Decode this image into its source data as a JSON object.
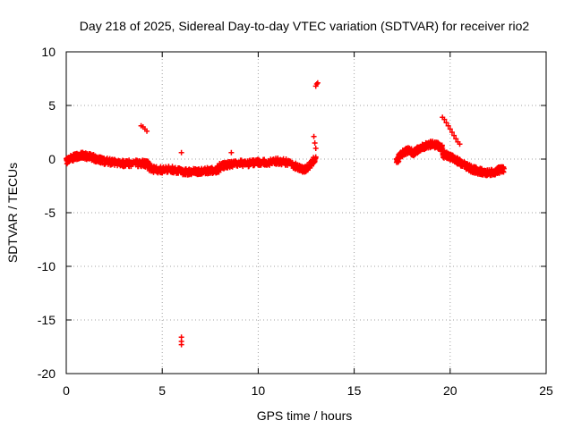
{
  "chart_data": {
    "type": "scatter",
    "title": "Day 218 of 2025, Sidereal Day-to-day VTEC variation (SDTVAR) for receiver rio2",
    "xlabel": "GPS time / hours",
    "ylabel": "SDTVAR / TECUs",
    "xlim": [
      0,
      25
    ],
    "ylim": [
      -20,
      10
    ],
    "xticks": [
      0,
      5,
      10,
      15,
      20,
      25
    ],
    "yticks": [
      -20,
      -15,
      -10,
      -5,
      0,
      5,
      10
    ],
    "xtick_labels": [
      "0",
      "5",
      "10",
      "15",
      "20",
      "25"
    ],
    "ytick_labels": [
      "-20",
      "-15",
      "-10",
      "-5",
      "0",
      "5",
      "10"
    ],
    "grid": true,
    "marker": "+",
    "color": "#ff0000",
    "series": [
      {
        "name": "SDTVAR",
        "segments": [
          {
            "x": [
              0.0,
              0.3,
              0.6,
              0.8,
              1.0,
              1.3,
              1.6,
              2.0,
              2.5,
              3.0,
              3.5,
              4.0,
              4.3
            ],
            "y": [
              -0.2,
              0.1,
              0.3,
              0.4,
              0.3,
              0.2,
              0.0,
              -0.2,
              -0.3,
              -0.4,
              -0.4,
              -0.4,
              -0.5
            ]
          },
          {
            "x": [
              4.3,
              4.6,
              5.0,
              5.4,
              5.8,
              6.2,
              6.6,
              7.0,
              7.4,
              7.8,
              8.0
            ],
            "y": [
              -0.8,
              -1.0,
              -1.0,
              -0.9,
              -1.1,
              -1.2,
              -1.2,
              -1.1,
              -1.1,
              -1.0,
              -0.9
            ]
          },
          {
            "x": [
              8.0,
              8.5,
              9.0,
              9.5,
              10.0,
              10.5,
              11.0,
              11.5,
              12.0,
              12.4,
              12.7,
              13.0
            ],
            "y": [
              -0.7,
              -0.5,
              -0.4,
              -0.4,
              -0.3,
              -0.3,
              -0.2,
              -0.3,
              -0.7,
              -1.0,
              -0.6,
              0.2
            ]
          },
          {
            "x": [
              17.2,
              17.5,
              17.8,
              18.1,
              18.4,
              18.7,
              19.0,
              19.3,
              19.6
            ],
            "y": [
              -0.2,
              0.5,
              0.8,
              0.6,
              1.0,
              1.2,
              1.4,
              1.3,
              1.0
            ]
          },
          {
            "x": [
              19.6,
              19.9,
              20.2,
              20.5,
              20.8,
              21.1,
              21.4,
              21.7,
              22.0,
              22.3,
              22.6,
              22.8
            ],
            "y": [
              0.4,
              0.3,
              0.0,
              -0.3,
              -0.6,
              -0.9,
              -1.1,
              -1.2,
              -1.3,
              -1.2,
              -1.0,
              -0.9
            ]
          }
        ],
        "points": [
          {
            "x": 3.9,
            "y": 3.1
          },
          {
            "x": 4.0,
            "y": 3.0
          },
          {
            "x": 4.1,
            "y": 2.8
          },
          {
            "x": 4.2,
            "y": 2.6
          },
          {
            "x": 6.0,
            "y": 0.6
          },
          {
            "x": 8.6,
            "y": 0.6
          },
          {
            "x": 8.6,
            "y": -0.6
          },
          {
            "x": 6.0,
            "y": -16.6
          },
          {
            "x": 6.0,
            "y": -17.0
          },
          {
            "x": 6.0,
            "y": -17.3
          },
          {
            "x": 13.0,
            "y": 6.8
          },
          {
            "x": 13.05,
            "y": 7.0
          },
          {
            "x": 13.1,
            "y": 7.1
          },
          {
            "x": 12.9,
            "y": 2.1
          },
          {
            "x": 12.95,
            "y": 1.5
          },
          {
            "x": 13.0,
            "y": 1.0
          },
          {
            "x": 19.6,
            "y": 3.9
          },
          {
            "x": 19.7,
            "y": 3.7
          },
          {
            "x": 19.8,
            "y": 3.4
          },
          {
            "x": 19.9,
            "y": 3.1
          },
          {
            "x": 20.0,
            "y": 2.8
          },
          {
            "x": 20.1,
            "y": 2.5
          },
          {
            "x": 20.2,
            "y": 2.2
          },
          {
            "x": 20.3,
            "y": 1.9
          },
          {
            "x": 20.4,
            "y": 1.6
          },
          {
            "x": 20.5,
            "y": 1.4
          }
        ]
      }
    ]
  }
}
